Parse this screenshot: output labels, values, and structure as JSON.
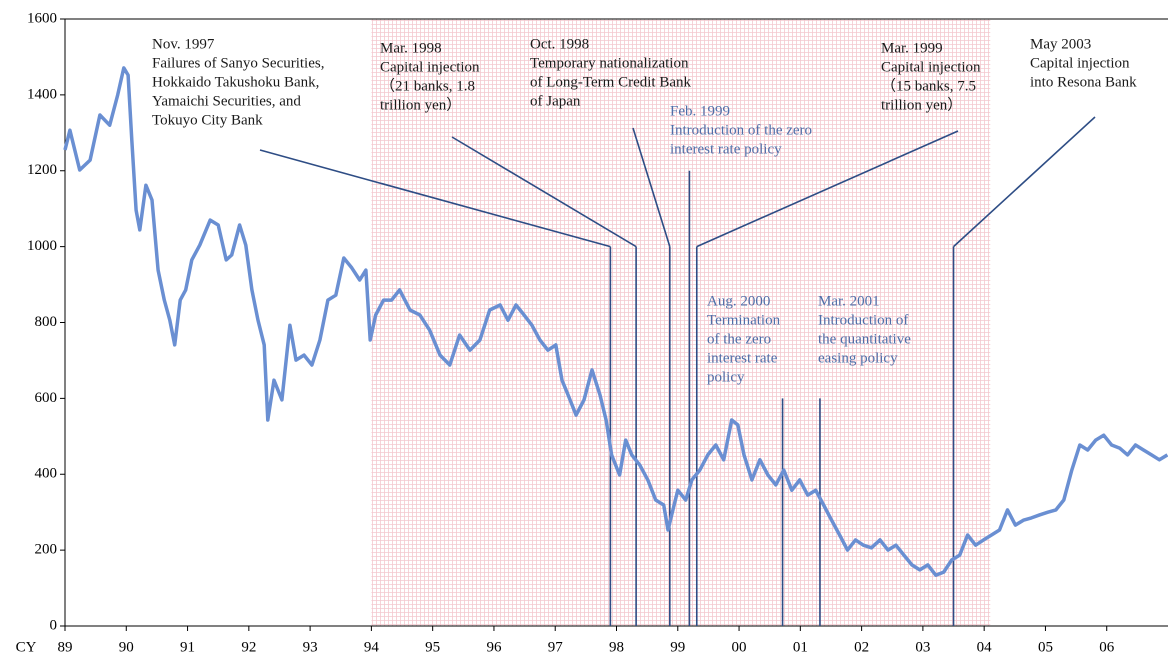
{
  "chart_data": {
    "type": "line",
    "xlabel": "CY",
    "color": "#6a8fd2",
    "shaded": [
      1994.0,
      2004.1
    ],
    "shade_color": "#f4c9cf",
    "xlim": [
      1989,
      2007
    ],
    "ylim": [
      0,
      1600
    ],
    "yticks": [
      0,
      200,
      400,
      600,
      800,
      1000,
      1200,
      1400,
      1600
    ],
    "xticks": [
      {
        "value": 1989,
        "label": "89"
      },
      {
        "value": 1990,
        "label": "90"
      },
      {
        "value": 1991,
        "label": "91"
      },
      {
        "value": 1992,
        "label": "92"
      },
      {
        "value": 1993,
        "label": "93"
      },
      {
        "value": 1994,
        "label": "94"
      },
      {
        "value": 1995,
        "label": "95"
      },
      {
        "value": 1996,
        "label": "96"
      },
      {
        "value": 1997,
        "label": "97"
      },
      {
        "value": 1998,
        "label": "98"
      },
      {
        "value": 1999,
        "label": "99"
      },
      {
        "value": 2000,
        "label": "00"
      },
      {
        "value": 2001,
        "label": "01"
      },
      {
        "value": 2002,
        "label": "02"
      },
      {
        "value": 2003,
        "label": "03"
      },
      {
        "value": 2004,
        "label": "04"
      },
      {
        "value": 2005,
        "label": "05"
      },
      {
        "value": 2006,
        "label": "06"
      }
    ],
    "x": [
      1989.0,
      1989.08,
      1989.24,
      1989.41,
      1989.57,
      1989.73,
      1989.86,
      1989.96,
      1990.03,
      1990.09,
      1990.16,
      1990.22,
      1990.32,
      1990.42,
      1990.52,
      1990.62,
      1990.71,
      1990.79,
      1990.88,
      1990.97,
      1991.07,
      1991.2,
      1991.37,
      1991.5,
      1991.63,
      1991.72,
      1991.85,
      1991.95,
      1992.05,
      1992.15,
      1992.25,
      1992.31,
      1992.41,
      1992.54,
      1992.67,
      1992.77,
      1992.9,
      1993.03,
      1993.16,
      1993.29,
      1993.42,
      1993.55,
      1993.68,
      1993.81,
      1993.91,
      1993.98,
      1994.07,
      1994.2,
      1994.33,
      1994.46,
      1994.63,
      1994.79,
      1994.95,
      1995.12,
      1995.28,
      1995.44,
      1995.61,
      1995.77,
      1995.93,
      1996.1,
      1996.23,
      1996.36,
      1996.49,
      1996.62,
      1996.75,
      1996.88,
      1997.01,
      1997.11,
      1997.21,
      1997.34,
      1997.47,
      1997.6,
      1997.73,
      1997.83,
      1997.92,
      1998.05,
      1998.15,
      1998.25,
      1998.38,
      1998.51,
      1998.64,
      1998.77,
      1998.84,
      1998.9,
      1999.0,
      1999.13,
      1999.23,
      1999.36,
      1999.49,
      1999.62,
      1999.75,
      1999.88,
      1999.98,
      2000.08,
      2000.21,
      2000.34,
      2000.47,
      2000.6,
      2000.73,
      2000.86,
      2000.99,
      2001.12,
      2001.25,
      2001.38,
      2001.51,
      2001.64,
      2001.77,
      2001.9,
      2002.03,
      2002.16,
      2002.3,
      2002.43,
      2002.56,
      2002.69,
      2002.82,
      2002.95,
      2003.08,
      2003.21,
      2003.34,
      2003.47,
      2003.6,
      2003.73,
      2003.86,
      2003.99,
      2004.12,
      2004.25,
      2004.38,
      2004.51,
      2004.64,
      2004.77,
      2004.91,
      2005.04,
      2005.17,
      2005.3,
      2005.43,
      2005.56,
      2005.69,
      2005.82,
      2005.95,
      2006.08,
      2006.21,
      2006.34,
      2006.47,
      2006.6,
      2006.73,
      2006.86,
      2006.99
    ],
    "values": [
      1255,
      1307,
      1202,
      1228,
      1347,
      1320,
      1400,
      1471,
      1452,
      1281,
      1096,
      1044,
      1162,
      1123,
      938,
      859,
      806,
      741,
      859,
      886,
      965,
      1004,
      1070,
      1057,
      965,
      978,
      1057,
      1004,
      886,
      806,
      741,
      543,
      648,
      596,
      793,
      701,
      714,
      688,
      754,
      859,
      872,
      970,
      944,
      912,
      938,
      754,
      820,
      859,
      859,
      886,
      833,
      820,
      780,
      714,
      688,
      767,
      727,
      754,
      833,
      846,
      806,
      846,
      820,
      793,
      754,
      727,
      741,
      648,
      609,
      556,
      596,
      675,
      609,
      543,
      451,
      398,
      490,
      451,
      424,
      385,
      332,
      319,
      253,
      293,
      358,
      332,
      385,
      411,
      451,
      477,
      438,
      543,
      530,
      451,
      385,
      438,
      398,
      372,
      411,
      358,
      385,
      345,
      358,
      319,
      279,
      240,
      200,
      227,
      213,
      206,
      227,
      200,
      213,
      187,
      161,
      148,
      161,
      134,
      142,
      174,
      187,
      240,
      213,
      227,
      240,
      253,
      306,
      266,
      279,
      285,
      293,
      300,
      306,
      332,
      411,
      477,
      464,
      490,
      503,
      477,
      469,
      451,
      477,
      464,
      451,
      438,
      451
    ],
    "annotations": [
      {
        "text": [
          "Nov. 1997",
          "Failures of Sanyo Securities,",
          "Hokkaido Takushoku Bank,",
          "Yamaichi Securities, and",
          "Tokuyo City Bank"
        ],
        "x": 1997.9,
        "y": 1000,
        "color": "#1a1a1a"
      },
      {
        "text": [
          "Mar. 1998",
          "Capital injection",
          "（21 banks, 1.8",
          "trillion yen）"
        ],
        "x": 1998.32,
        "y": 1000,
        "color": "#1a1a1a"
      },
      {
        "text": [
          "Oct. 1998",
          "Temporary nationalization",
          "of Long-Term Credit Bank",
          "of Japan"
        ],
        "x": 1998.87,
        "y": 1000,
        "color": "#1a1a1a"
      },
      {
        "text": [
          "Feb. 1999",
          "Introduction of the zero",
          "interest rate policy"
        ],
        "x": 1999.19,
        "y": 1200,
        "color": "#4f6ea8"
      },
      {
        "text": [
          "Mar. 1999",
          "Capital injection",
          "（15 banks, 7.5",
          "trillion yen）"
        ],
        "x": 1999.31,
        "y": 1000,
        "color": "#1a1a1a"
      },
      {
        "text": [
          "May 2003",
          "Capital injection",
          "into Resona Bank"
        ],
        "x": 2003.5,
        "y": 1000,
        "color": "#1a1a1a"
      },
      {
        "text": [
          "Aug. 2000",
          "Termination",
          "of the zero",
          "interest rate",
          "policy"
        ],
        "x": 2000.71,
        "y": 600,
        "color": "#4f6ea8"
      },
      {
        "text": [
          "Mar. 2001",
          "Introduction of",
          "the quantitative",
          "easing policy"
        ],
        "x": 2001.32,
        "y": 600,
        "color": "#4f6ea8"
      }
    ]
  }
}
